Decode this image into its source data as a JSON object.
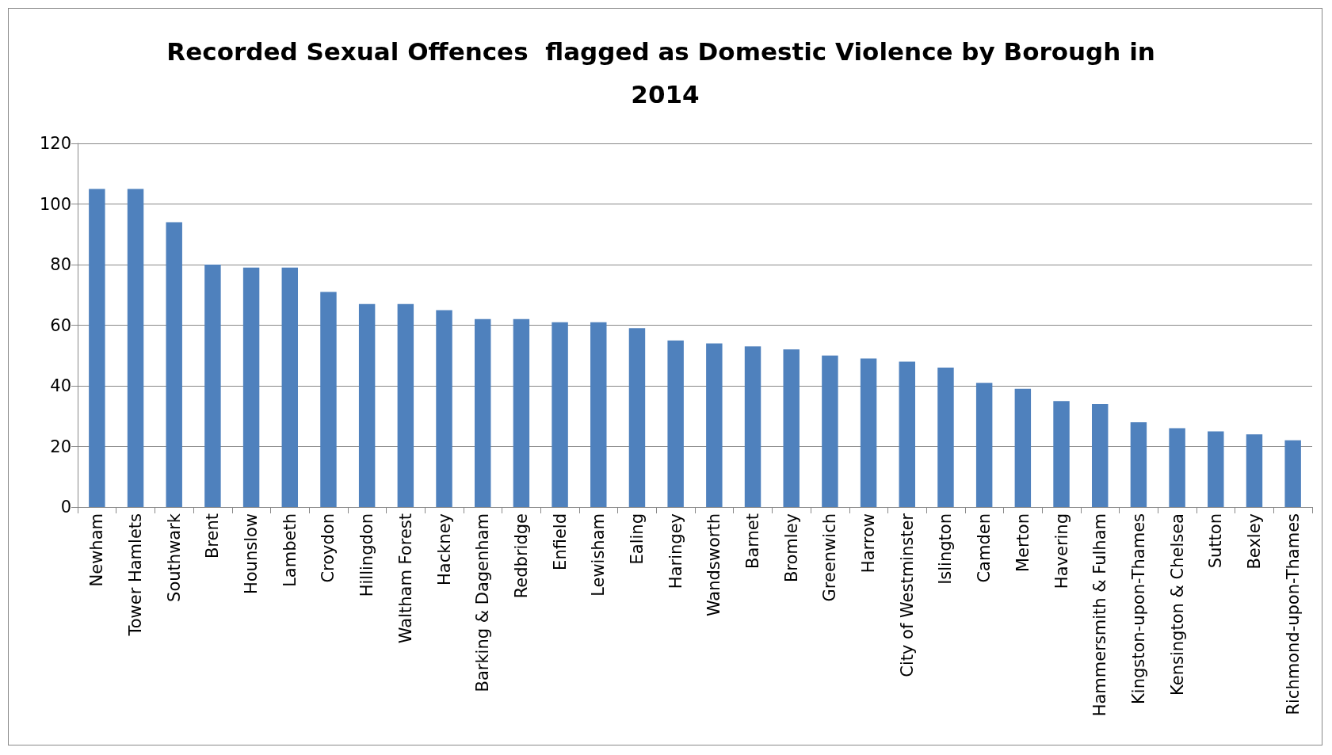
{
  "chart_data": {
    "type": "bar",
    "title": "Recorded Sexual Offences  flagged as Domestic Violence by Borough in 2014",
    "categories": [
      "Newham",
      "Tower Hamlets",
      "Southwark",
      "Brent",
      "Hounslow",
      "Lambeth",
      "Croydon",
      "Hillingdon",
      "Waltham Forest",
      "Hackney",
      "Barking & Dagenham",
      "Redbridge",
      "Enfield",
      "Lewisham",
      "Ealing",
      "Haringey",
      "Wandsworth",
      "Barnet",
      "Bromley",
      "Greenwich",
      "Harrow",
      "City of Westminster",
      "Islington",
      "Camden",
      "Merton",
      "Havering",
      "Hammersmith & Fulham",
      "Kingston-upon-Thames",
      "Kensington & Chelsea",
      "Sutton",
      "Bexley",
      "Richmond-upon-Thames"
    ],
    "values": [
      105,
      105,
      94,
      80,
      79,
      79,
      71,
      67,
      67,
      65,
      62,
      62,
      61,
      61,
      59,
      55,
      54,
      53,
      52,
      50,
      49,
      48,
      46,
      41,
      39,
      35,
      34,
      28,
      26,
      25,
      24,
      22
    ],
    "color": "#4f81bd",
    "ylim": [
      0,
      120
    ],
    "yticks": [
      0,
      20,
      40,
      60,
      80,
      100,
      120
    ],
    "grid": "y"
  }
}
